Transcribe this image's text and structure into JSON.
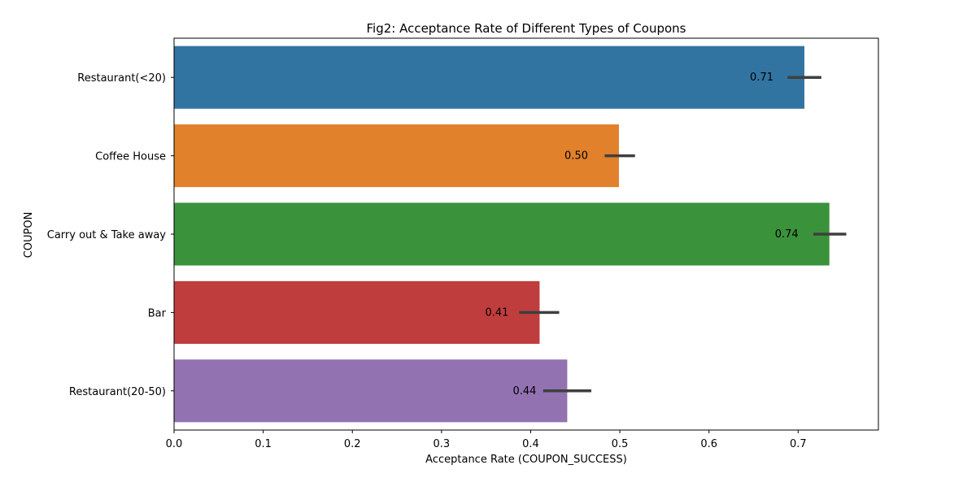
{
  "chart_data": {
    "type": "bar",
    "orientation": "horizontal",
    "title": "Fig2: Acceptance Rate of Different Types of Coupons",
    "xlabel": "Acceptance Rate (COUPON_SUCCESS)",
    "ylabel": "COUPON",
    "xlim": [
      0,
      0.79
    ],
    "xticks": [
      0.0,
      0.1,
      0.2,
      0.3,
      0.4,
      0.5,
      0.6,
      0.7
    ],
    "xtick_labels": [
      "0.0",
      "0.1",
      "0.2",
      "0.3",
      "0.4",
      "0.5",
      "0.6",
      "0.7"
    ],
    "grid": false,
    "categories": [
      "Restaurant(<20)",
      "Coffee House",
      "Carry out & Take away",
      "Bar",
      "Restaurant(20-50)"
    ],
    "values": [
      0.707,
      0.499,
      0.735,
      0.41,
      0.441
    ],
    "value_labels": [
      "0.71",
      "0.50",
      "0.74",
      "0.41",
      "0.44"
    ],
    "error_low": [
      0.688,
      0.483,
      0.717,
      0.387,
      0.414
    ],
    "error_high": [
      0.726,
      0.517,
      0.754,
      0.432,
      0.468
    ],
    "colors": [
      "#3274a1",
      "#e1812c",
      "#3a923a",
      "#c03d3e",
      "#9372b2"
    ],
    "error_color": "#3f3f3f"
  }
}
